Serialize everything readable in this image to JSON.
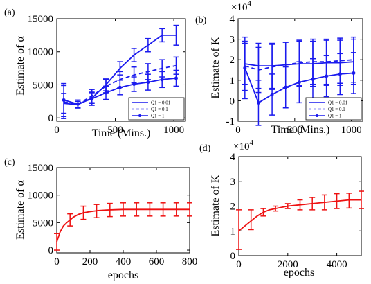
{
  "chart_data": [
    {
      "panel": "(a)",
      "type": "line",
      "xlabel": "Time (Mins.)",
      "ylabel": "Estimate of α",
      "xlim": [
        0,
        1100
      ],
      "ylim": [
        -500,
        15000
      ],
      "xticks": [
        0,
        500,
        1000
      ],
      "yticks": [
        0,
        5000,
        10000,
        15000
      ],
      "x": [
        60,
        180,
        300,
        420,
        540,
        660,
        780,
        900,
        1020
      ],
      "legend": {
        "position": "bottom-right"
      },
      "series": [
        {
          "name": "Q1 = 0.01",
          "line": "solid",
          "marker": false,
          "values": [
            2200,
            2000,
            3000,
            5000,
            7500,
            9500,
            11000,
            12500,
            12500
          ],
          "err": [
            1500,
            500,
            800,
            900,
            1000,
            1000,
            1000,
            1000,
            1500
          ]
        },
        {
          "name": "Q1 = 0.1",
          "line": "dashed",
          "marker": false,
          "values": [
            2400,
            2100,
            3300,
            4800,
            5800,
            6500,
            7000,
            7500,
            7900
          ],
          "err": [
            2500,
            600,
            1000,
            1000,
            1200,
            1200,
            1200,
            1300,
            1300
          ]
        },
        {
          "name": "Q1 = 1",
          "line": "solid",
          "marker": true,
          "values": [
            2700,
            2100,
            2900,
            3800,
            4600,
            5100,
            5400,
            5800,
            6000
          ],
          "err": [
            2500,
            600,
            1000,
            1000,
            1100,
            1100,
            1200,
            1200,
            1200
          ]
        }
      ]
    },
    {
      "panel": "(b)",
      "type": "line",
      "xlabel": "Time (Mins.)",
      "ylabel": "Estimate of K",
      "multiplier": "×10",
      "multiplier_exp": "4",
      "xlim": [
        0,
        1100
      ],
      "ylim": [
        -1,
        4
      ],
      "xticks": [
        0,
        500,
        1000
      ],
      "yticks": [
        -1,
        0,
        1,
        2,
        3,
        4
      ],
      "x": [
        60,
        180,
        300,
        420,
        540,
        660,
        780,
        900,
        1020
      ],
      "legend": {
        "position": "bottom-right"
      },
      "series": [
        {
          "name": "Q1 = 0.01",
          "line": "solid",
          "marker": false,
          "values": [
            1.8,
            1.7,
            1.7,
            1.75,
            1.8,
            1.8,
            1.85,
            1.85,
            1.9
          ],
          "err": [
            1.0,
            1.1,
            1.1,
            1.1,
            1.1,
            1.1,
            1.1,
            1.1,
            1.1
          ]
        },
        {
          "name": "Q1 = 0.1",
          "line": "dashed",
          "marker": false,
          "values": [
            1.7,
            1.5,
            1.65,
            1.75,
            1.85,
            1.9,
            1.9,
            1.95,
            2.0
          ],
          "err": [
            1.2,
            1.1,
            1.1,
            1.1,
            1.1,
            1.1,
            1.1,
            1.1,
            1.1
          ]
        },
        {
          "name": "Q1 = 1",
          "line": "solid",
          "marker": true,
          "values": [
            1.6,
            -0.1,
            0.3,
            0.65,
            0.9,
            1.05,
            1.2,
            1.3,
            1.35
          ],
          "err": [
            1.5,
            1.1,
            1.0,
            1.0,
            1.0,
            1.0,
            1.0,
            1.0,
            1.0
          ]
        }
      ]
    },
    {
      "panel": "(c)",
      "type": "line",
      "xlabel": "epochs",
      "ylabel": "Estimate of α",
      "xlim": [
        0,
        800
      ],
      "ylim": [
        -500,
        15000
      ],
      "xticks": [
        0,
        200,
        400,
        600,
        800
      ],
      "yticks": [
        0,
        5000,
        10000,
        15000
      ],
      "series": [
        {
          "name": "",
          "line": "solid",
          "marker": false,
          "curve_x": [
            0,
            20,
            40,
            60,
            80,
            100,
            130,
            160,
            200,
            250,
            300,
            350,
            400,
            450,
            500,
            600,
            700,
            800
          ],
          "curve_y": [
            1500,
            3300,
            4400,
            5000,
            5500,
            6000,
            6500,
            6800,
            7000,
            7200,
            7300,
            7350,
            7400,
            7400,
            7400,
            7400,
            7400,
            7400
          ],
          "err_x": [
            0,
            80,
            160,
            240,
            320,
            400,
            480,
            560,
            640,
            720,
            800
          ],
          "err_y": [
            1500,
            5500,
            6800,
            7100,
            7300,
            7400,
            7400,
            7400,
            7400,
            7400,
            7400
          ],
          "err": [
            1500,
            1100,
            1200,
            1200,
            1200,
            1200,
            1200,
            1200,
            1200,
            1200,
            1200
          ]
        }
      ]
    },
    {
      "panel": "(d)",
      "type": "line",
      "xlabel": "epochs",
      "ylabel": "Estimate of K",
      "multiplier": "×10",
      "multiplier_exp": "4",
      "xlim": [
        0,
        5000
      ],
      "ylim": [
        0,
        4
      ],
      "xticks": [
        0,
        2000,
        4000
      ],
      "yticks": [
        0,
        1,
        2,
        3,
        4
      ],
      "series": [
        {
          "name": "",
          "line": "solid",
          "marker": false,
          "curve_x": [
            0,
            250,
            500,
            750,
            1000,
            1250,
            1500,
            1750,
            2000,
            2500,
            3000,
            3500,
            4000,
            4500,
            5000
          ],
          "curve_y": [
            1.0,
            1.2,
            1.4,
            1.6,
            1.75,
            1.85,
            1.9,
            1.95,
            2.0,
            2.05,
            2.1,
            2.15,
            2.2,
            2.25,
            2.25
          ],
          "err_x": [
            0,
            500,
            1000,
            1500,
            2000,
            2500,
            3000,
            3500,
            4000,
            4500,
            5000
          ],
          "err_y": [
            1.05,
            1.45,
            1.75,
            1.9,
            2.0,
            2.05,
            2.1,
            2.15,
            2.2,
            2.22,
            2.25
          ],
          "err": [
            0.8,
            0.4,
            0.15,
            0.1,
            0.1,
            0.2,
            0.25,
            0.3,
            0.3,
            0.3,
            0.35
          ]
        }
      ]
    }
  ],
  "colors": {
    "blue": "#1a1aee",
    "red": "#ee1111",
    "axis": "#000000"
  }
}
